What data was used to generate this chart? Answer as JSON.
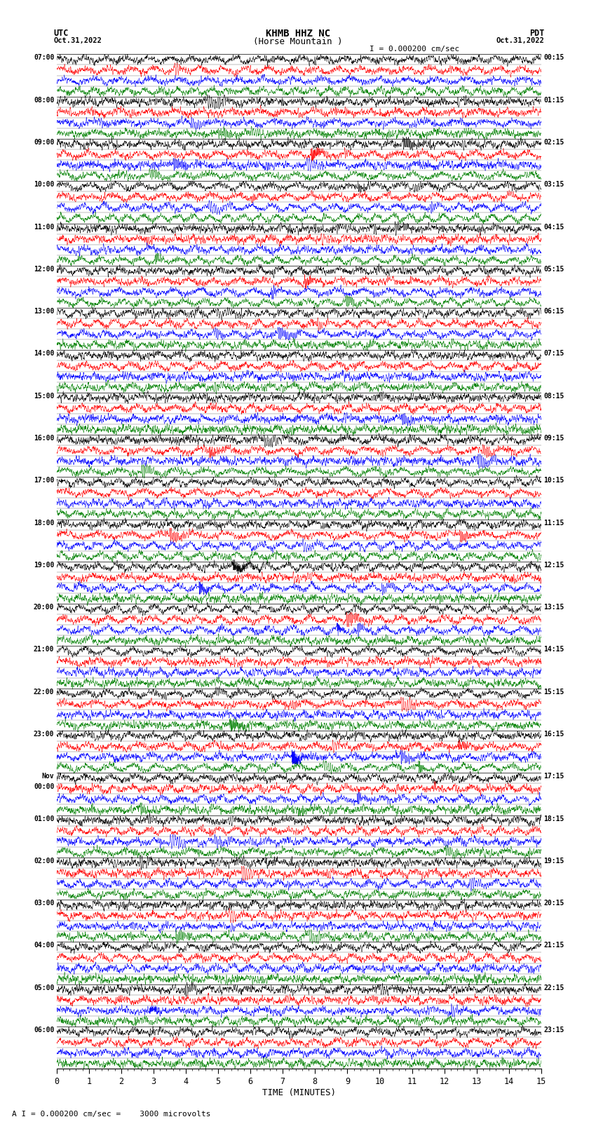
{
  "title_line1": "KHMB HHZ NC",
  "title_line2": "(Horse Mountain )",
  "scale_label": "I = 0.000200 cm/sec",
  "bottom_label": "A I = 0.000200 cm/sec =    3000 microvolts",
  "utc_label": "UTC",
  "utc_date": "Oct.31,2022",
  "pdt_label": "PDT",
  "pdt_date": "Oct.31,2022",
  "xlabel": "TIME (MINUTES)",
  "left_times": [
    "07:00",
    "08:00",
    "09:00",
    "10:00",
    "11:00",
    "12:00",
    "13:00",
    "14:00",
    "15:00",
    "16:00",
    "17:00",
    "18:00",
    "19:00",
    "20:00",
    "21:00",
    "22:00",
    "23:00",
    "Nov\n00:00",
    "01:00",
    "02:00",
    "03:00",
    "04:00",
    "05:00",
    "06:00"
  ],
  "right_times": [
    "00:15",
    "01:15",
    "02:15",
    "03:15",
    "04:15",
    "05:15",
    "06:15",
    "07:15",
    "08:15",
    "09:15",
    "10:15",
    "11:15",
    "12:15",
    "13:15",
    "14:15",
    "15:15",
    "16:15",
    "17:15",
    "18:15",
    "19:15",
    "20:15",
    "21:15",
    "22:15",
    "23:15"
  ],
  "num_rows": 24,
  "minutes_per_row": 15,
  "x_ticks": [
    0,
    1,
    2,
    3,
    4,
    5,
    6,
    7,
    8,
    9,
    10,
    11,
    12,
    13,
    14,
    15
  ],
  "trace_colors": [
    "black",
    "red",
    "blue",
    "green"
  ],
  "bg_color": "white",
  "fig_width": 8.5,
  "fig_height": 16.13,
  "dpi": 100
}
